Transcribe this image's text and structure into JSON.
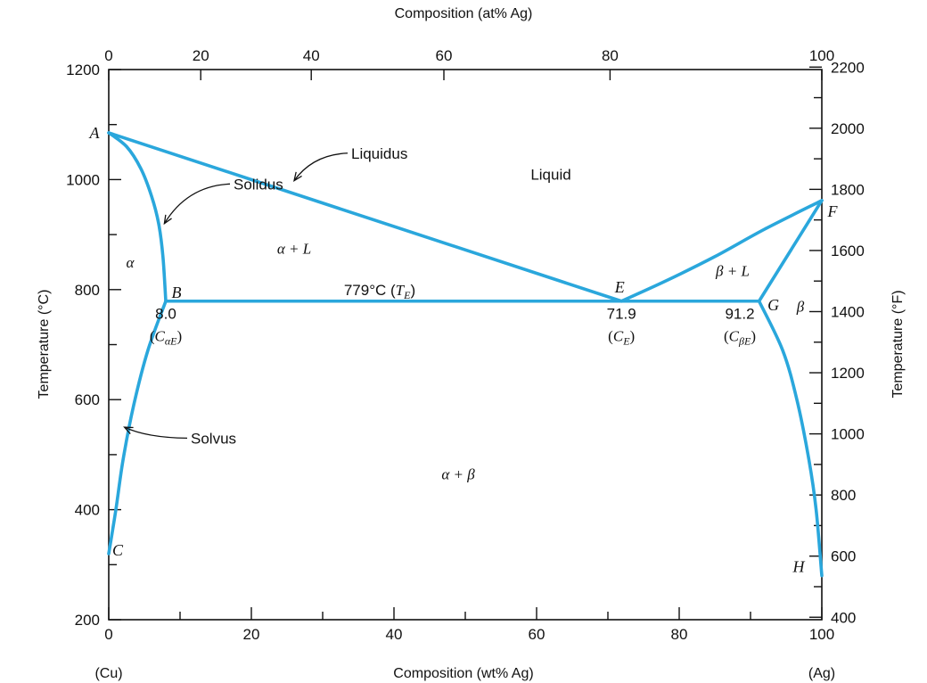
{
  "chart_data": {
    "type": "line",
    "title": "",
    "xlabel": "Composition (wt% Ag)",
    "xlabel_top": "Composition (at% Ag)",
    "ylabel": "Temperature (°C)",
    "ylabel_right": "Temperature (°F)",
    "xlim": [
      0,
      100
    ],
    "ylim": [
      200,
      1200
    ],
    "x_ticks": [
      0,
      20,
      40,
      60,
      80,
      100
    ],
    "x_ticks_top": [
      0,
      20,
      40,
      60,
      80,
      100
    ],
    "x_ticks_top_wt": [
      0,
      12.9,
      28.4,
      47.0,
      70.3,
      100
    ],
    "y_ticks": [
      200,
      400,
      600,
      800,
      1000,
      1200
    ],
    "y_ticks_right": [
      400,
      600,
      800,
      1000,
      1200,
      1400,
      1600,
      1800,
      2000,
      2200
    ],
    "end_labels": {
      "left": "(Cu)",
      "right": "(Ag)"
    },
    "grid": false,
    "line_color": "#2aa7dc",
    "series": [
      {
        "id": "liquidus_left",
        "points": [
          [
            0,
            1085
          ],
          [
            71.9,
            779
          ]
        ]
      },
      {
        "id": "liquidus_right",
        "points": [
          [
            71.9,
            779
          ],
          [
            78,
            815
          ],
          [
            85,
            860
          ],
          [
            92,
            910
          ],
          [
            100,
            962
          ]
        ]
      },
      {
        "id": "solidus_left",
        "points": [
          [
            0,
            1085
          ],
          [
            2.5,
            1060
          ],
          [
            4.5,
            1020
          ],
          [
            6,
            970
          ],
          [
            7,
            920
          ],
          [
            7.6,
            860
          ],
          [
            8.0,
            779
          ]
        ]
      },
      {
        "id": "solidus_right",
        "points": [
          [
            91.2,
            779
          ],
          [
            100,
            962
          ]
        ]
      },
      {
        "id": "eutectic_isotherm",
        "points": [
          [
            8.0,
            779
          ],
          [
            91.2,
            779
          ]
        ]
      },
      {
        "id": "solvus_left",
        "points": [
          [
            8.0,
            779
          ],
          [
            5.5,
            690
          ],
          [
            3.5,
            590
          ],
          [
            2,
            490
          ],
          [
            1,
            400
          ],
          [
            0,
            320
          ]
        ]
      },
      {
        "id": "solvus_right",
        "points": [
          [
            91.2,
            779
          ],
          [
            94.5,
            690
          ],
          [
            96.5,
            600
          ],
          [
            98.2,
            490
          ],
          [
            99.2,
            400
          ],
          [
            100,
            280
          ]
        ]
      }
    ],
    "points": [
      {
        "label": "A",
        "x": 0,
        "y": 1085
      },
      {
        "label": "B",
        "x": 8.0,
        "y": 779
      },
      {
        "label": "C",
        "x": 0,
        "y": 320
      },
      {
        "label": "E",
        "x": 71.9,
        "y": 779
      },
      {
        "label": "F",
        "x": 100,
        "y": 962
      },
      {
        "label": "G",
        "x": 91.2,
        "y": 779
      },
      {
        "label": "H",
        "x": 100,
        "y": 280
      }
    ],
    "regions": [
      {
        "label": "Liquid",
        "x": 62,
        "y": 1000
      },
      {
        "label": "α",
        "x": 3,
        "y": 840
      },
      {
        "label": "α + L",
        "x": 26,
        "y": 865
      },
      {
        "label": "β + L",
        "x": 87.5,
        "y": 825
      },
      {
        "label": "β",
        "x": 97,
        "y": 760
      },
      {
        "label": "α + β",
        "x": 49,
        "y": 455
      }
    ],
    "annotations": [
      {
        "id": "liquidus",
        "text": "Liquidus",
        "x": 34,
        "y": 1048,
        "arrow_to": [
          26,
          998
        ]
      },
      {
        "id": "solidus",
        "text": "Solidus",
        "x": 17.5,
        "y": 992,
        "arrow_to": [
          7.8,
          920
        ]
      },
      {
        "id": "solvus",
        "text": "Solvus",
        "x": 11.5,
        "y": 530,
        "arrow_to": [
          2.2,
          550
        ]
      },
      {
        "id": "eutectic_temp",
        "text": "779°C",
        "symbol": "T",
        "sub": "E",
        "x": 38,
        "y": 800
      },
      {
        "id": "cae",
        "value": "8.0",
        "symbol": "C",
        "sub": "αE",
        "x": 8.0,
        "y": 757
      },
      {
        "id": "ce",
        "value": "71.9",
        "symbol": "C",
        "sub": "E",
        "x": 71.9,
        "y": 757
      },
      {
        "id": "cbe",
        "value": "91.2",
        "symbol": "C",
        "sub": "βE",
        "x": 88.5,
        "y": 757
      }
    ]
  }
}
